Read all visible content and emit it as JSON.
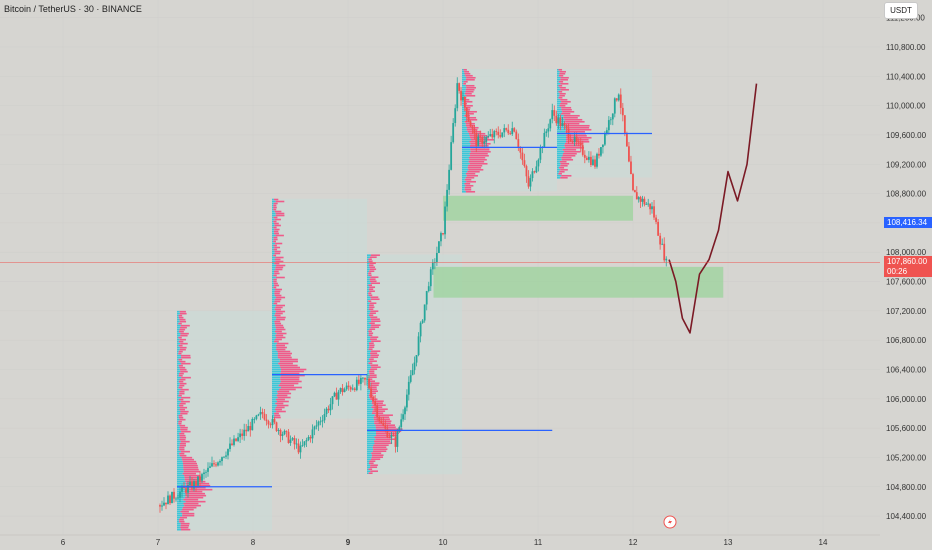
{
  "header": {
    "title": "Bitcoin / TetherUS · 30 · BINANCE",
    "currency": "USDT"
  },
  "colors": {
    "bull": "#26a69a",
    "bear": "#ef5350",
    "blue_line": "#2962ff",
    "drawing": "#7b1a25",
    "zone": "#9bd39b",
    "profile_cyan": "#3ec6d8",
    "profile_pink": "#ef5b8a",
    "range_box": "#c9dcd9"
  },
  "markers": {
    "last_price": "107,860.00",
    "countdown": "00:26",
    "level_price": "108,416.34"
  },
  "chart_data": {
    "type": "candlestick",
    "instrument": "Bitcoin / TetherUS",
    "interval": "30",
    "exchange": "BINANCE",
    "quote_currency": "USDT",
    "y_axis": {
      "min": 104400,
      "max": 111400,
      "ticks": [
        "111,200.00",
        "110,800.00",
        "110,400.00",
        "110,000.00",
        "109,600.00",
        "109,200.00",
        "108,800.00",
        "108,400.00",
        "108,000.00",
        "107,600.00",
        "107,200.00",
        "106,800.00",
        "106,400.00",
        "106,000.00",
        "105,600.00",
        "105,200.00",
        "104,800.00",
        "104,400.00"
      ]
    },
    "x_axis": {
      "ticks": [
        "6",
        "7",
        "8",
        "9",
        "10",
        "11",
        "12",
        "13",
        "14"
      ],
      "bold_tick": "9"
    },
    "last_price": 107860,
    "marked_level": 108416.34,
    "horizontal_levels": [
      {
        "price": 104800,
        "from_day": 7.2,
        "to_day": 8.2
      },
      {
        "price": 106330,
        "from_day": 8.2,
        "to_day": 9.2
      },
      {
        "price": 105570,
        "from_day": 9.2,
        "to_day": 11.15
      },
      {
        "price": 109430,
        "from_day": 10.2,
        "to_day": 11.2
      },
      {
        "price": 109620,
        "from_day": 11.2,
        "to_day": 12.2
      }
    ],
    "zones": [
      {
        "from_day": 10.0,
        "to_day": 12.0,
        "price_low": 108430,
        "price_high": 108770
      },
      {
        "from_day": 9.9,
        "to_day": 12.95,
        "price_low": 107380,
        "price_high": 107800
      }
    ],
    "path_waypoints": [
      {
        "day": 7.0,
        "price": 104550
      },
      {
        "day": 7.4,
        "price": 104850
      },
      {
        "day": 7.8,
        "price": 105400
      },
      {
        "day": 8.1,
        "price": 105800
      },
      {
        "day": 8.5,
        "price": 105300
      },
      {
        "day": 8.9,
        "price": 106100
      },
      {
        "day": 9.2,
        "price": 106250
      },
      {
        "day": 9.35,
        "price": 105650
      },
      {
        "day": 9.5,
        "price": 105400
      },
      {
        "day": 9.7,
        "price": 106500
      },
      {
        "day": 9.85,
        "price": 107600
      },
      {
        "day": 10.0,
        "price": 108300
      },
      {
        "day": 10.15,
        "price": 110300
      },
      {
        "day": 10.35,
        "price": 109500
      },
      {
        "day": 10.75,
        "price": 109700
      },
      {
        "day": 10.9,
        "price": 108900
      },
      {
        "day": 11.15,
        "price": 109900
      },
      {
        "day": 11.45,
        "price": 109400
      },
      {
        "day": 11.6,
        "price": 109200
      },
      {
        "day": 11.85,
        "price": 110200
      },
      {
        "day": 12.0,
        "price": 108800
      },
      {
        "day": 12.2,
        "price": 108600
      },
      {
        "day": 12.35,
        "price": 107850
      }
    ]
  }
}
